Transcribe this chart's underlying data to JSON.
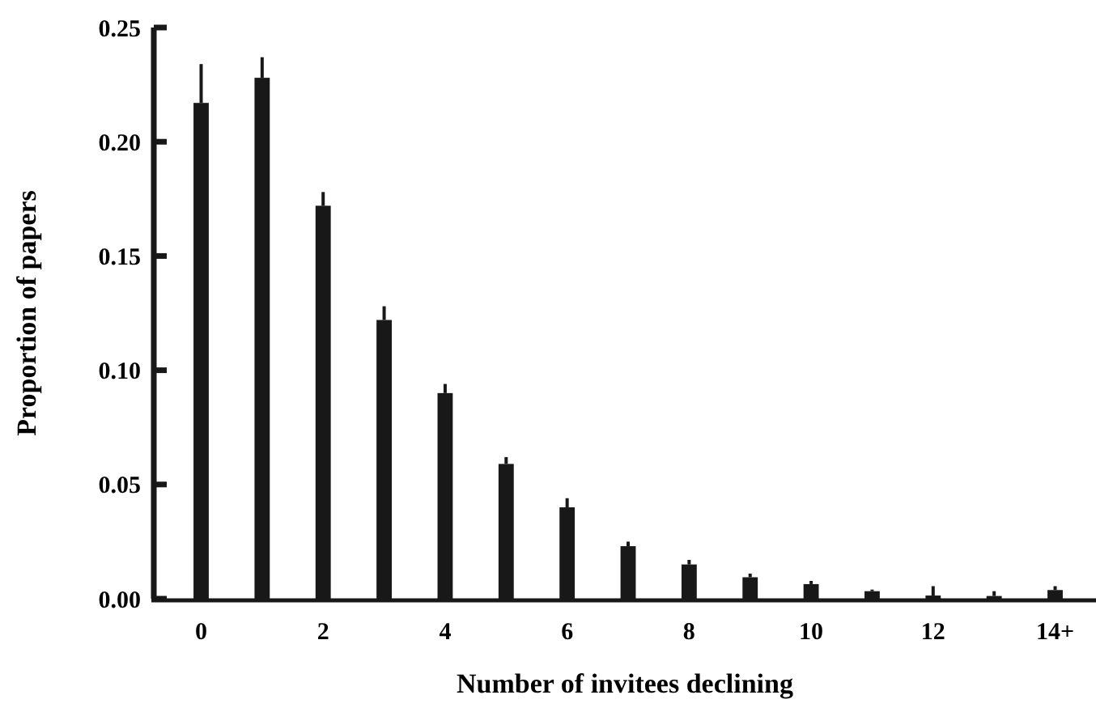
{
  "chart_data": {
    "type": "bar",
    "xlabel": "Number of invitees declining",
    "ylabel": "Proportion of papers",
    "categories": [
      "0",
      null,
      "2",
      null,
      "4",
      null,
      "6",
      null,
      "8",
      null,
      "10",
      null,
      "12",
      null,
      "14+"
    ],
    "values": [
      0.217,
      0.228,
      0.172,
      0.122,
      0.09,
      0.059,
      0.04,
      0.023,
      0.015,
      0.0094,
      0.0064,
      0.0033,
      0.0014,
      0.0012,
      0.0038
    ],
    "errors": [
      [
        0.217,
        0.234
      ],
      [
        0.228,
        0.237
      ],
      [
        0.172,
        0.178
      ],
      [
        0.122,
        0.128
      ],
      [
        0.09,
        0.094
      ],
      [
        0.059,
        0.062
      ],
      [
        0.04,
        0.044
      ],
      [
        0.023,
        0.025
      ],
      [
        0.015,
        0.017
      ],
      [
        0.0094,
        0.011
      ],
      [
        0.0064,
        0.0078
      ],
      [
        0.0033,
        0.004
      ],
      [
        0.0014,
        0.0055
      ],
      [
        0.0012,
        0.0033
      ],
      [
        0.0038,
        0.0055
      ]
    ],
    "color": "#181818",
    "ylim": [
      0,
      0.25
    ],
    "yticks": [
      {
        "value": 0,
        "label": "0.00"
      },
      {
        "value": 0.05,
        "label": "0.05"
      },
      {
        "value": 0.1,
        "label": "0.10"
      },
      {
        "value": 0.15,
        "label": "0.15"
      },
      {
        "value": 0.2,
        "label": "0.20"
      },
      {
        "value": 0.25,
        "label": "0.25"
      }
    ],
    "grid": false
  }
}
